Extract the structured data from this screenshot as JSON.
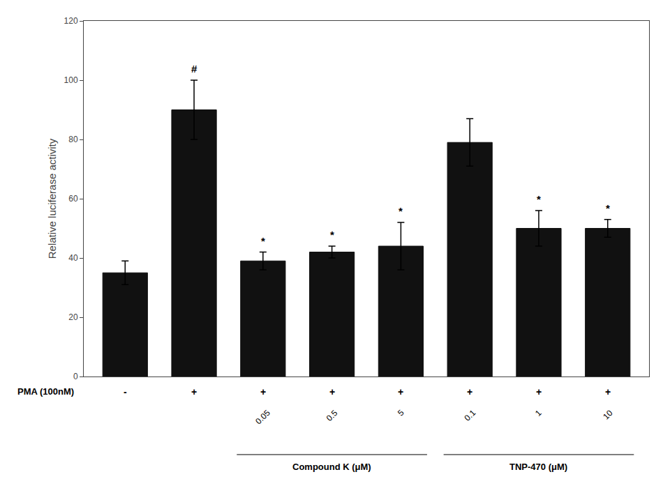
{
  "chart_data": {
    "type": "bar",
    "categories": [
      null,
      null,
      null,
      null,
      null,
      null,
      null,
      null
    ],
    "values": [
      35,
      90,
      39,
      42,
      44,
      79,
      50,
      50
    ],
    "errors": [
      4,
      10,
      3,
      2,
      8,
      8,
      6,
      3
    ],
    "color": "#111111",
    "ylabel": "Relative luciferase activity",
    "ylim": [
      0,
      120
    ],
    "yticks": [
      0,
      20,
      40,
      60,
      80,
      100,
      120
    ],
    "grid": false,
    "tick_labels": "y",
    "significance_labels": [
      null,
      "#",
      "*",
      "*",
      "*",
      null,
      "*",
      "*"
    ],
    "pma_row_label": "PMA (100nM)",
    "pma_labels": [
      "-",
      "+",
      "+",
      "+",
      "+",
      "+",
      "+",
      "+"
    ],
    "concentration_labels": [
      null,
      null,
      "0.05",
      "0.5",
      "5",
      "0.1",
      "1",
      "10"
    ],
    "groups": [
      null,
      null,
      "Compound K (μM)",
      "Compound K (μM)",
      "Compound K (μM)",
      "TNP-470 (μM)",
      "TNP-470 (μM)",
      "TNP-470 (μM)"
    ]
  }
}
